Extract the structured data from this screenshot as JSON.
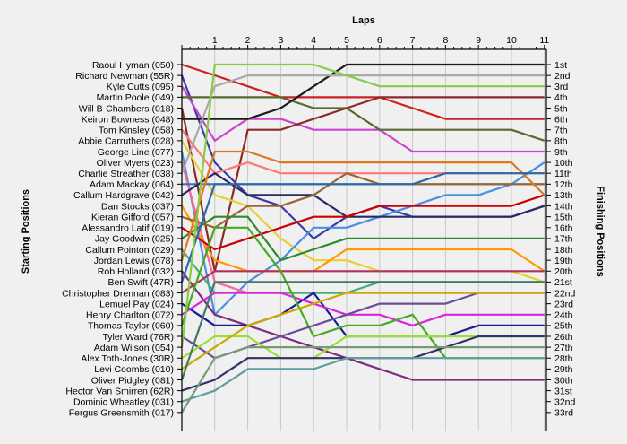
{
  "chart_data": {
    "type": "line",
    "title": "Laps",
    "ylabel_left": "Starting Positions",
    "ylabel_right": "Finishing Positions",
    "x_ticks": [
      1,
      2,
      3,
      4,
      5,
      6,
      7,
      8,
      9,
      10,
      11
    ],
    "drivers": [
      "Raoul Hyman (050)",
      "Richard Newman (55R)",
      "Kyle Cutts (095)",
      "Martin Poole (049)",
      "Will B-Chambers (018)",
      "Keiron Bowness (048)",
      "Tom Kinsley (058)",
      "Abbie Carruthers (028)",
      "George Line (077)",
      "Oliver Myers (023)",
      "Charlie Streather (038)",
      "Adam Mackay (064)",
      "Callum Hardgrave (042)",
      "Dan Stocks (037)",
      "Kieran Gifford (057)",
      "Alessandro Latif (019)",
      "Jay Goodwin (025)",
      "Callum Pointon (029)",
      "Jordan Lewis (078)",
      "Rob Holland (032)",
      "Ben Swift (47R)",
      "Christopher Drennan (083)",
      "Lemuel Pay (024)",
      "Henry Charlton (072)",
      "Thomas Taylor (060)",
      "Tyler Ward (76R)",
      "Adam Wilson (054)",
      "Alex Toth-Jones (30R)",
      "Levi Coombs (010)",
      "Oliver Pidgley (081)",
      "Hector Van Smirren (62R)",
      "Dominic Wheatley (031)",
      "Fergus Greensmith (017)"
    ],
    "finish_labels": [
      "1st",
      "2nd",
      "3rd",
      "4th",
      "5th",
      "6th",
      "7th",
      "8th",
      "9th",
      "10th",
      "11th",
      "12th",
      "13th",
      "14th",
      "15th",
      "16th",
      "17th",
      "18th",
      "19th",
      "20th",
      "21st",
      "22nd",
      "23rd",
      "24th",
      "25th",
      "26th",
      "27th",
      "28th",
      "29th",
      "30th",
      "31st",
      "32nd",
      "33rd"
    ],
    "series": [
      {
        "color": "#cc2222",
        "positions": [
          1,
          2,
          3,
          4,
          4,
          4,
          4,
          5,
          6,
          6,
          6,
          6
        ]
      },
      {
        "color": "#3a3aaa",
        "positions": [
          2,
          10,
          13,
          14,
          17,
          15,
          14,
          15,
          15,
          15,
          15,
          14
        ]
      },
      {
        "color": "#cc44cc",
        "positions": [
          3,
          8,
          6,
          6,
          7,
          7,
          7,
          9,
          9,
          9,
          9,
          9
        ]
      },
      {
        "color": "#556b2f",
        "positions": [
          4,
          4,
          4,
          4,
          5,
          5,
          7,
          7,
          7,
          7,
          7,
          8
        ]
      },
      {
        "color": "#8b2a2a",
        "positions": [
          5,
          20,
          7,
          7,
          6,
          5,
          4,
          4,
          4,
          4,
          4,
          4
        ]
      },
      {
        "color": "#1a1a1a",
        "positions": [
          6,
          6,
          6,
          5,
          3,
          1,
          1,
          1,
          1,
          1,
          1,
          1
        ]
      },
      {
        "color": "#ff7777",
        "positions": [
          7,
          11,
          10,
          11,
          11,
          11,
          11,
          11,
          11,
          11,
          11,
          11
        ]
      },
      {
        "color": "#e8d030",
        "positions": [
          8,
          13,
          14,
          17,
          19,
          19,
          20,
          20,
          20,
          20,
          20,
          21
        ]
      },
      {
        "color": "#4a8fe0",
        "positions": [
          9,
          24,
          21,
          19,
          16,
          16,
          15,
          14,
          13,
          13,
          12,
          10
        ]
      },
      {
        "color": "#ff6699",
        "positions": [
          10,
          21,
          22,
          22,
          22,
          22,
          22,
          22,
          22,
          22,
          22,
          22
        ]
      },
      {
        "color": "#aaaaaa",
        "positions": [
          11,
          3,
          2,
          2,
          2,
          2,
          2,
          2,
          2,
          2,
          2,
          2
        ]
      },
      {
        "color": "#2a7ab8",
        "positions": [
          12,
          12,
          12,
          12,
          12,
          12,
          12,
          12,
          12,
          12,
          12,
          12
        ]
      },
      {
        "color": "#2a2a66",
        "positions": [
          13,
          11,
          13,
          13,
          13,
          15,
          15,
          15,
          15,
          15,
          15,
          14
        ]
      },
      {
        "color": "#ff9900",
        "positions": [
          14,
          19,
          20,
          20,
          20,
          18,
          18,
          18,
          18,
          18,
          18,
          20
        ]
      },
      {
        "color": "#996633",
        "positions": [
          15,
          16,
          14,
          14,
          13,
          11,
          12,
          12,
          12,
          12,
          12,
          12
        ]
      },
      {
        "color": "#cc0000",
        "positions": [
          16,
          18,
          17,
          16,
          15,
          15,
          14,
          14,
          14,
          14,
          14,
          13
        ]
      },
      {
        "color": "#2e8b2e",
        "positions": [
          17,
          15,
          15,
          19,
          18,
          17,
          17,
          17,
          17,
          17,
          17,
          17
        ]
      },
      {
        "color": "#3cb371",
        "positions": [
          18,
          22,
          22,
          22,
          22,
          22,
          21,
          21,
          21,
          21,
          21,
          21
        ]
      },
      {
        "color": "#dd7722",
        "positions": [
          19,
          9,
          9,
          10,
          10,
          10,
          10,
          10,
          10,
          10,
          10,
          13
        ]
      },
      {
        "color": "#7b2e7b",
        "positions": [
          20,
          24,
          25,
          26,
          27,
          28,
          29,
          30,
          30,
          30,
          30,
          30
        ]
      },
      {
        "color": "#2a6aa8",
        "positions": [
          21,
          12,
          12,
          12,
          12,
          12,
          12,
          12,
          11,
          11,
          11,
          11
        ]
      },
      {
        "color": "#b03060",
        "positions": [
          22,
          20,
          20,
          20,
          20,
          20,
          20,
          20,
          20,
          20,
          20,
          20
        ]
      },
      {
        "color": "#1a1a99",
        "positions": [
          23,
          25,
          25,
          24,
          22,
          26,
          26,
          26,
          26,
          25,
          25,
          25
        ]
      },
      {
        "color": "#dd22dd",
        "positions": [
          24,
          22,
          22,
          22,
          23,
          24,
          24,
          25,
          24,
          24,
          24,
          24
        ]
      },
      {
        "color": "#44aa22",
        "positions": [
          25,
          16,
          16,
          20,
          26,
          25,
          25,
          24,
          28,
          28,
          28,
          28
        ]
      },
      {
        "color": "#6b4c9a",
        "positions": [
          26,
          28,
          27,
          26,
          25,
          24,
          23,
          23,
          23,
          22,
          22,
          22
        ]
      },
      {
        "color": "#88cc44",
        "positions": [
          27,
          1,
          1,
          1,
          1,
          2,
          3,
          3,
          3,
          3,
          3,
          3
        ]
      },
      {
        "color": "#99e033",
        "positions": [
          28,
          26,
          26,
          28,
          28,
          26,
          26,
          26,
          26,
          26,
          26,
          26
        ]
      },
      {
        "color": "#ccaa00",
        "positions": [
          29,
          27,
          25,
          24,
          23,
          22,
          22,
          22,
          22,
          22,
          22,
          22
        ]
      },
      {
        "color": "#447766",
        "positions": [
          30,
          21,
          21,
          21,
          21,
          21,
          21,
          21,
          21,
          21,
          21,
          21
        ]
      },
      {
        "color": "#333366",
        "positions": [
          31,
          30,
          28,
          28,
          28,
          28,
          28,
          28,
          27,
          26,
          26,
          26
        ]
      },
      {
        "color": "#5f9e9e",
        "positions": [
          32,
          31,
          29,
          29,
          29,
          28,
          28,
          28,
          28,
          28,
          28,
          28
        ]
      },
      {
        "color": "#779977",
        "positions": [
          33,
          28,
          27,
          27,
          27,
          27,
          27,
          27,
          27,
          27,
          27,
          27
        ]
      }
    ]
  }
}
